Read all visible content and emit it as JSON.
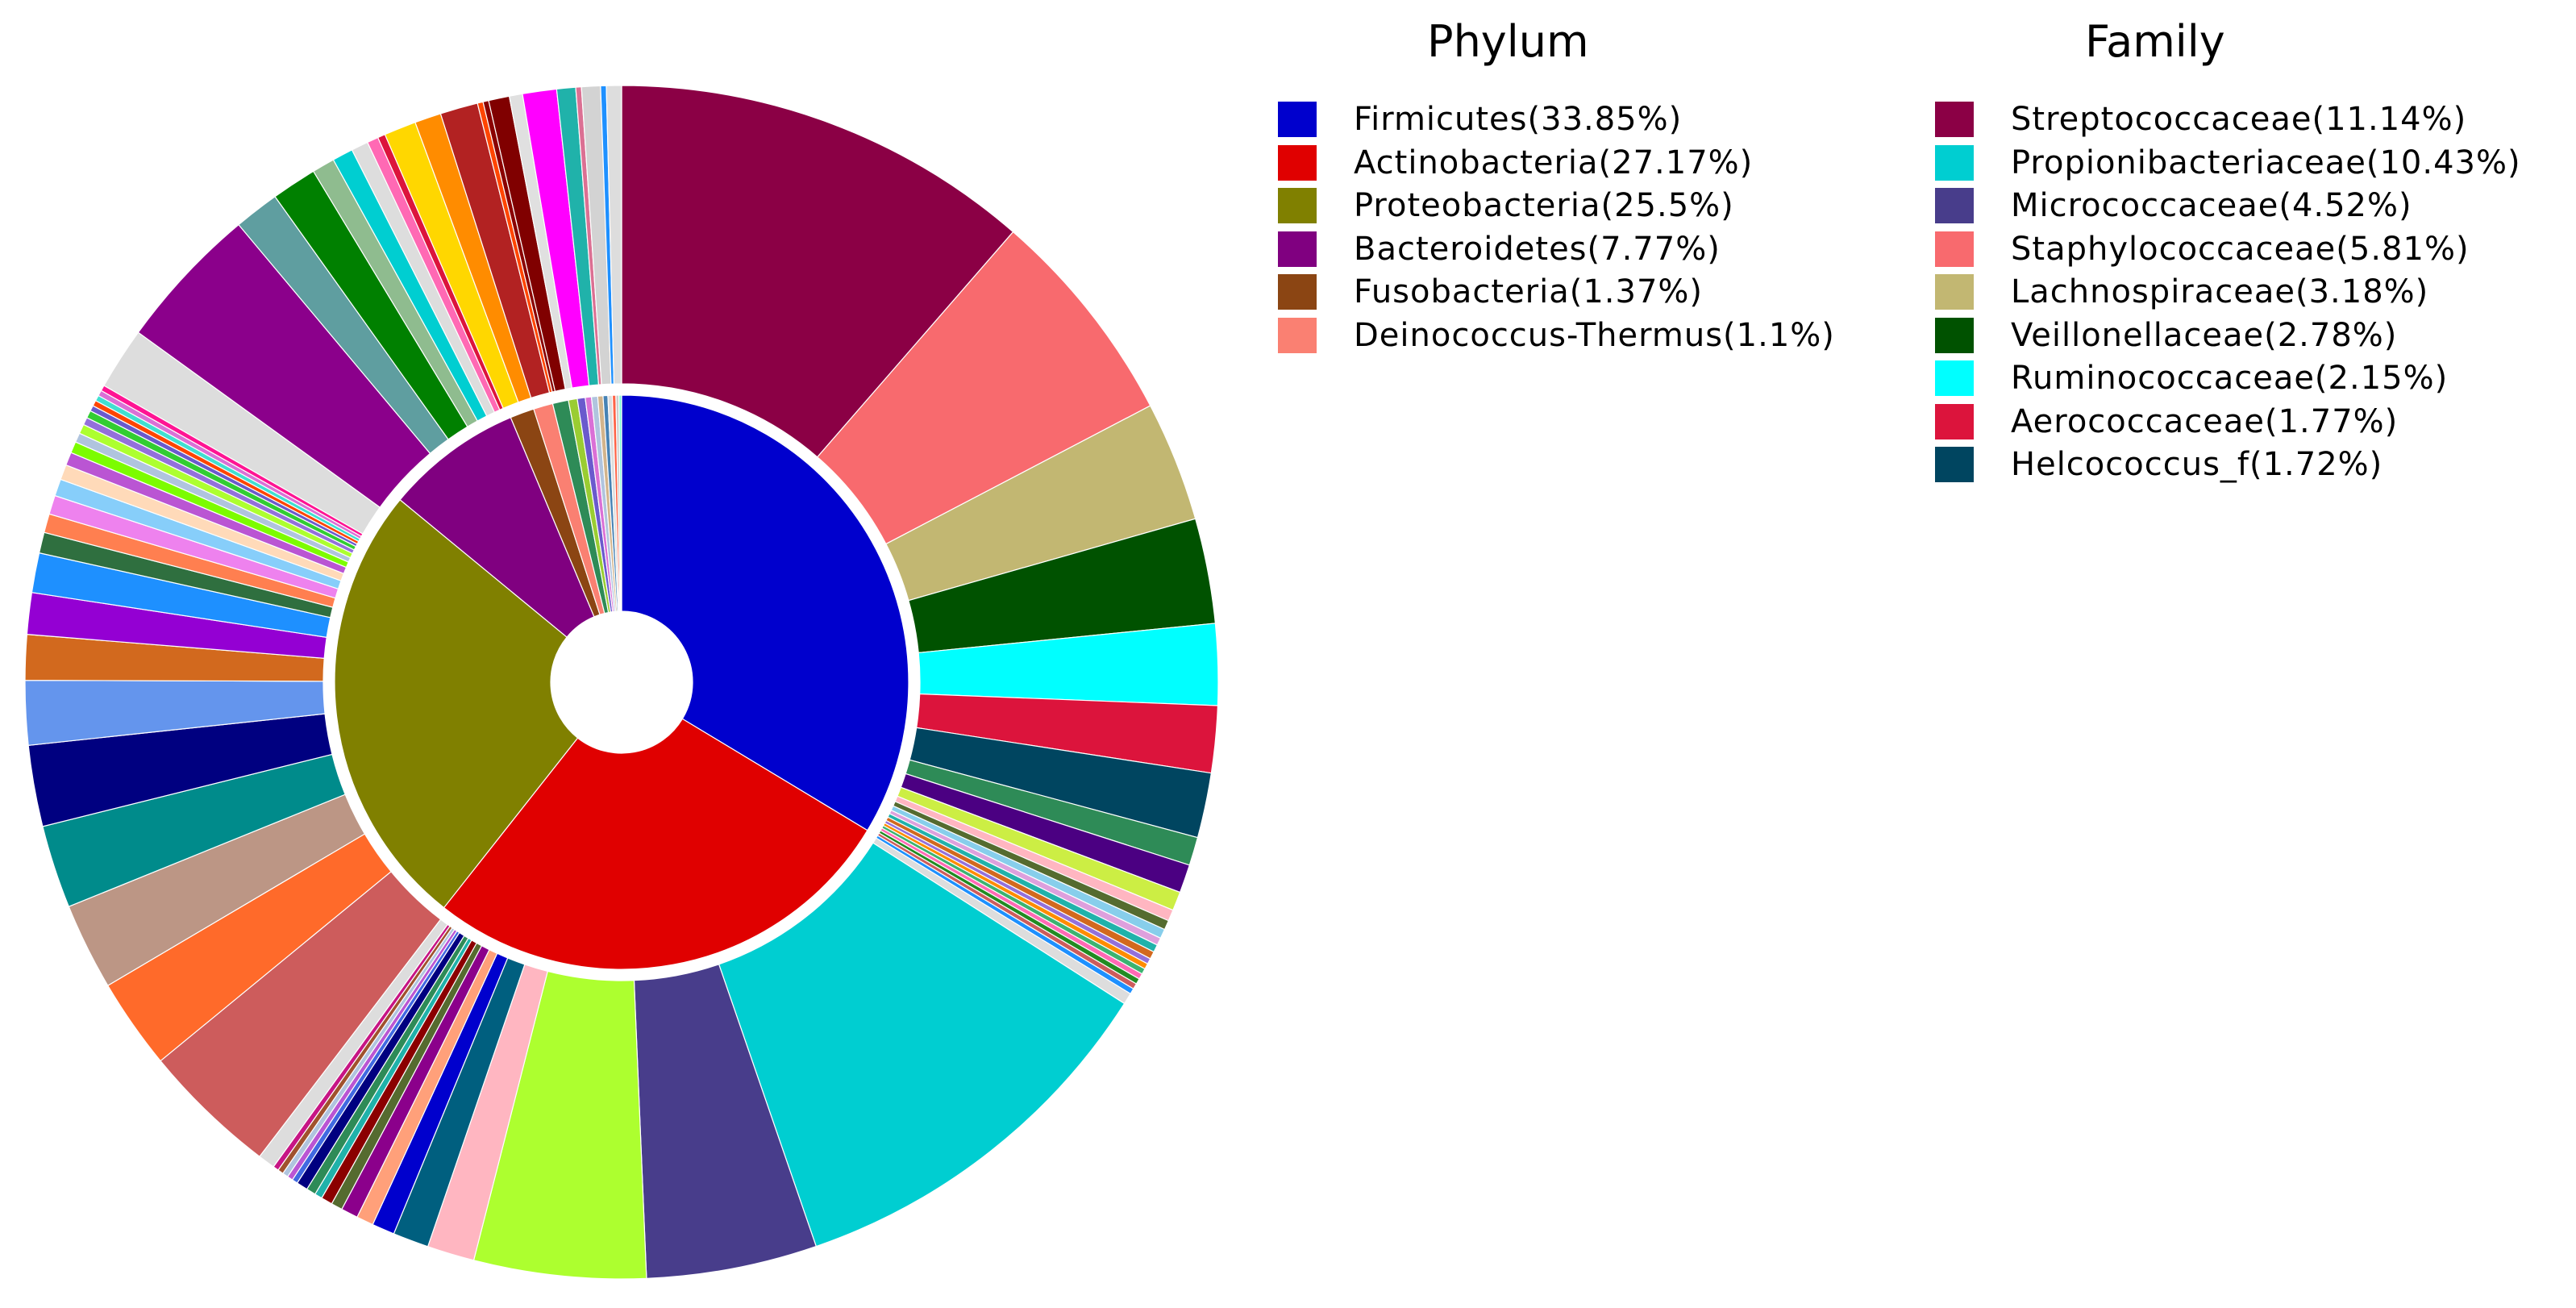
{
  "chart_data": {
    "type": "pie",
    "subtype": "nested-donut",
    "inner_ring": {
      "legend_title": "Phylum",
      "slices": [
        {
          "label": "Firmicutes(33.85%)",
          "value": 33.85,
          "color": "#0000CD"
        },
        {
          "label": "Actinobacteria(27.17%)",
          "value": 27.17,
          "color": "#E00000"
        },
        {
          "label": "Proteobacteria(25.5%)",
          "value": 25.5,
          "color": "#808000"
        },
        {
          "label": "Bacteroidetes(7.77%)",
          "value": 7.77,
          "color": "#800080"
        },
        {
          "label": "Fusobacteria(1.37%)",
          "value": 1.37,
          "color": "#8B4513"
        },
        {
          "label": "Deinococcus-Thermus(1.1%)",
          "value": 1.1,
          "color": "#FA8072"
        }
      ],
      "unlabeled_slices": [
        {
          "value": 0.9,
          "color": "#2E8B57"
        },
        {
          "value": 0.5,
          "color": "#9ACD32"
        },
        {
          "value": 0.45,
          "color": "#6A5ACD"
        },
        {
          "value": 0.35,
          "color": "#DA70D6"
        },
        {
          "value": 0.35,
          "color": "#B0C4DE"
        },
        {
          "value": 0.3,
          "color": "#D2B48C"
        },
        {
          "value": 0.27,
          "color": "#4682B4"
        },
        {
          "value": 0.25,
          "color": "#DDDDDD"
        },
        {
          "value": 0.2,
          "color": "#FF6347"
        },
        {
          "value": 0.17,
          "color": "#CCCCCC"
        },
        {
          "value": 0.15,
          "color": "#7FFFD4"
        }
      ]
    },
    "outer_ring": {
      "legend_title": "Family",
      "slices": [
        {
          "label": "Streptococcaceae(11.14%)",
          "value": 11.14,
          "color": "#8B0045"
        },
        {
          "label": "Staphylococcaceae(5.81%)",
          "value": 5.81,
          "color": "#F86A6E"
        },
        {
          "label": "Lachnospiraceae(3.18%)",
          "value": 3.18,
          "color": "#C2B772"
        },
        {
          "label": "Veillonellaceae(2.78%)",
          "value": 2.78,
          "color": "#005200"
        },
        {
          "label": "Ruminococcaceae(2.15%)",
          "value": 2.15,
          "color": "#00FFFF"
        },
        {
          "label": "Aerococcaceae(1.77%)",
          "value": 1.77,
          "color": "#DC143C"
        },
        {
          "label": "Helcococcus_f(1.72%)",
          "value": 1.72,
          "color": "#004560"
        },
        {
          "value": 0.75,
          "color": "#2E8B57"
        },
        {
          "value": 0.75,
          "color": "#4B0082"
        },
        {
          "value": 0.5,
          "color": "#CCEE44"
        },
        {
          "value": 0.3,
          "color": "#FFB6C1"
        },
        {
          "value": 0.25,
          "color": "#556B2F"
        },
        {
          "value": 0.25,
          "color": "#87CEEB"
        },
        {
          "value": 0.2,
          "color": "#DDA0DD"
        },
        {
          "value": 0.2,
          "color": "#20B2AA"
        },
        {
          "value": 0.2,
          "color": "#D2691E"
        },
        {
          "value": 0.15,
          "color": "#9370DB"
        },
        {
          "value": 0.15,
          "color": "#FF8C00"
        },
        {
          "value": 0.15,
          "color": "#3CB371"
        },
        {
          "value": 0.15,
          "color": "#FF69B4"
        },
        {
          "value": 0.15,
          "color": "#228B22"
        },
        {
          "value": 0.15,
          "color": "#CD5C5C"
        },
        {
          "value": 0.15,
          "color": "#1E90FF"
        },
        {
          "value": 0.3,
          "color": "#DDDDDD"
        },
        {
          "label": "Propionibacteriaceae(10.43%)",
          "value": 10.43,
          "color": "#00CED1"
        },
        {
          "label": "Micrococcaceae(4.52%)",
          "value": 4.52,
          "color": "#483D8B"
        },
        {
          "value": 4.55,
          "color": "#ADFF2F"
        },
        {
          "value": 1.25,
          "color": "#FFB6C1"
        },
        {
          "value": 0.95,
          "color": "#005F7F"
        },
        {
          "value": 0.6,
          "color": "#0000CD"
        },
        {
          "value": 0.45,
          "color": "#FFA07A"
        },
        {
          "value": 0.45,
          "color": "#8B008B"
        },
        {
          "value": 0.3,
          "color": "#556B2F"
        },
        {
          "value": 0.3,
          "color": "#8B0000"
        },
        {
          "value": 0.2,
          "color": "#20B2AA"
        },
        {
          "value": 0.25,
          "color": "#2E8B57"
        },
        {
          "value": 0.3,
          "color": "#000080"
        },
        {
          "value": 0.15,
          "color": "#4169E1"
        },
        {
          "value": 0.15,
          "color": "#BA55D3"
        },
        {
          "value": 0.15,
          "color": "#B0C4DE"
        },
        {
          "value": 0.15,
          "color": "#A0522D"
        },
        {
          "value": 0.15,
          "color": "#C71585"
        },
        {
          "value": 0.45,
          "color": "#DDDDDD"
        },
        {
          "value": 3.6,
          "color": "#CD5C5C"
        },
        {
          "value": 2.4,
          "color": "#FF6A2A"
        },
        {
          "value": 2.3,
          "color": "#BC9685"
        },
        {
          "value": 2.2,
          "color": "#008B8B"
        },
        {
          "value": 2.15,
          "color": "#000080"
        },
        {
          "value": 1.7,
          "color": "#6495ED"
        },
        {
          "value": 1.2,
          "color": "#D2691E"
        },
        {
          "value": 1.1,
          "color": "#9400D3"
        },
        {
          "value": 1.05,
          "color": "#1E90FF"
        },
        {
          "value": 0.55,
          "color": "#2F6F3F"
        },
        {
          "value": 0.5,
          "color": "#FF7F50"
        },
        {
          "value": 0.5,
          "color": "#EE82EE"
        },
        {
          "value": 0.45,
          "color": "#87CEFA"
        },
        {
          "value": 0.4,
          "color": "#FFDAB9"
        },
        {
          "value": 0.35,
          "color": "#BA55D3"
        },
        {
          "value": 0.3,
          "color": "#7CFC00"
        },
        {
          "value": 0.25,
          "color": "#B0C4DE"
        },
        {
          "value": 0.25,
          "color": "#ADFF2F"
        },
        {
          "value": 0.2,
          "color": "#9370DB"
        },
        {
          "value": 0.2,
          "color": "#32CD32"
        },
        {
          "value": 0.15,
          "color": "#6A5ACD"
        },
        {
          "value": 0.15,
          "color": "#FF4500"
        },
        {
          "value": 0.15,
          "color": "#40E0D0"
        },
        {
          "value": 0.15,
          "color": "#DA70D6"
        },
        {
          "value": 0.15,
          "color": "#FF1493"
        },
        {
          "value": 1.65,
          "color": "#DDDDDD"
        },
        {
          "value": 3.85,
          "color": "#8B008B"
        },
        {
          "value": 1.2,
          "color": "#5F9EA0"
        },
        {
          "value": 1.2,
          "color": "#008000"
        },
        {
          "value": 0.6,
          "color": "#8FBC8F"
        },
        {
          "value": 0.55,
          "color": "#00CED1"
        },
        {
          "value": 0.45,
          "color": "#DDDDDD"
        },
        {
          "value": 0.3,
          "color": "#FF69B4"
        },
        {
          "value": 0.2,
          "color": "#DC143C"
        },
        {
          "value": 0.85,
          "color": "#FFD700"
        },
        {
          "value": 0.7,
          "color": "#FF8C00"
        },
        {
          "value": 1.0,
          "color": "#B22222"
        },
        {
          "value": 0.15,
          "color": "#FF4500"
        },
        {
          "value": 0.15,
          "color": "#8B0000"
        },
        {
          "value": 0.55,
          "color": "#800000"
        },
        {
          "value": 0.35,
          "color": "#E0E0E0"
        },
        {
          "value": 0.9,
          "color": "#FF00FF"
        },
        {
          "value": 0.5,
          "color": "#20B2AA"
        },
        {
          "value": 0.15,
          "color": "#DB7093"
        },
        {
          "value": 0.5,
          "color": "#D3D3D3"
        },
        {
          "value": 0.15,
          "color": "#1E90FF"
        },
        {
          "value": 0.4,
          "color": "#DDDDDD"
        }
      ]
    },
    "legends": [
      {
        "title": "Phylum",
        "placement": "top-middle",
        "items": [
          {
            "label": "Firmicutes(33.85%)",
            "color": "#0000CD"
          },
          {
            "label": "Actinobacteria(27.17%)",
            "color": "#E00000"
          },
          {
            "label": "Proteobacteria(25.5%)",
            "color": "#808000"
          },
          {
            "label": "Bacteroidetes(7.77%)",
            "color": "#800080"
          },
          {
            "label": "Fusobacteria(1.37%)",
            "color": "#8B4513"
          },
          {
            "label": "Deinococcus-Thermus(1.1%)",
            "color": "#FA8072"
          }
        ]
      },
      {
        "title": "Family",
        "placement": "top-right",
        "items": [
          {
            "label": "Streptococcaceae(11.14%)",
            "color": "#8B0045"
          },
          {
            "label": "Propionibacteriaceae(10.43%)",
            "color": "#00CED1"
          },
          {
            "label": "Micrococcaceae(4.52%)",
            "color": "#483D8B"
          },
          {
            "label": "Staphylococcaceae(5.81%)",
            "color": "#F86A6E"
          },
          {
            "label": "Lachnospiraceae(3.18%)",
            "color": "#C2B772"
          },
          {
            "label": "Veillonellaceae(2.78%)",
            "color": "#005200"
          },
          {
            "label": "Ruminococcaceae(2.15%)",
            "color": "#00FFFF"
          },
          {
            "label": "Aerococcaceae(1.77%)",
            "color": "#DC143C"
          },
          {
            "label": "Helcococcus_f(1.72%)",
            "color": "#004560"
          }
        ]
      }
    ]
  }
}
